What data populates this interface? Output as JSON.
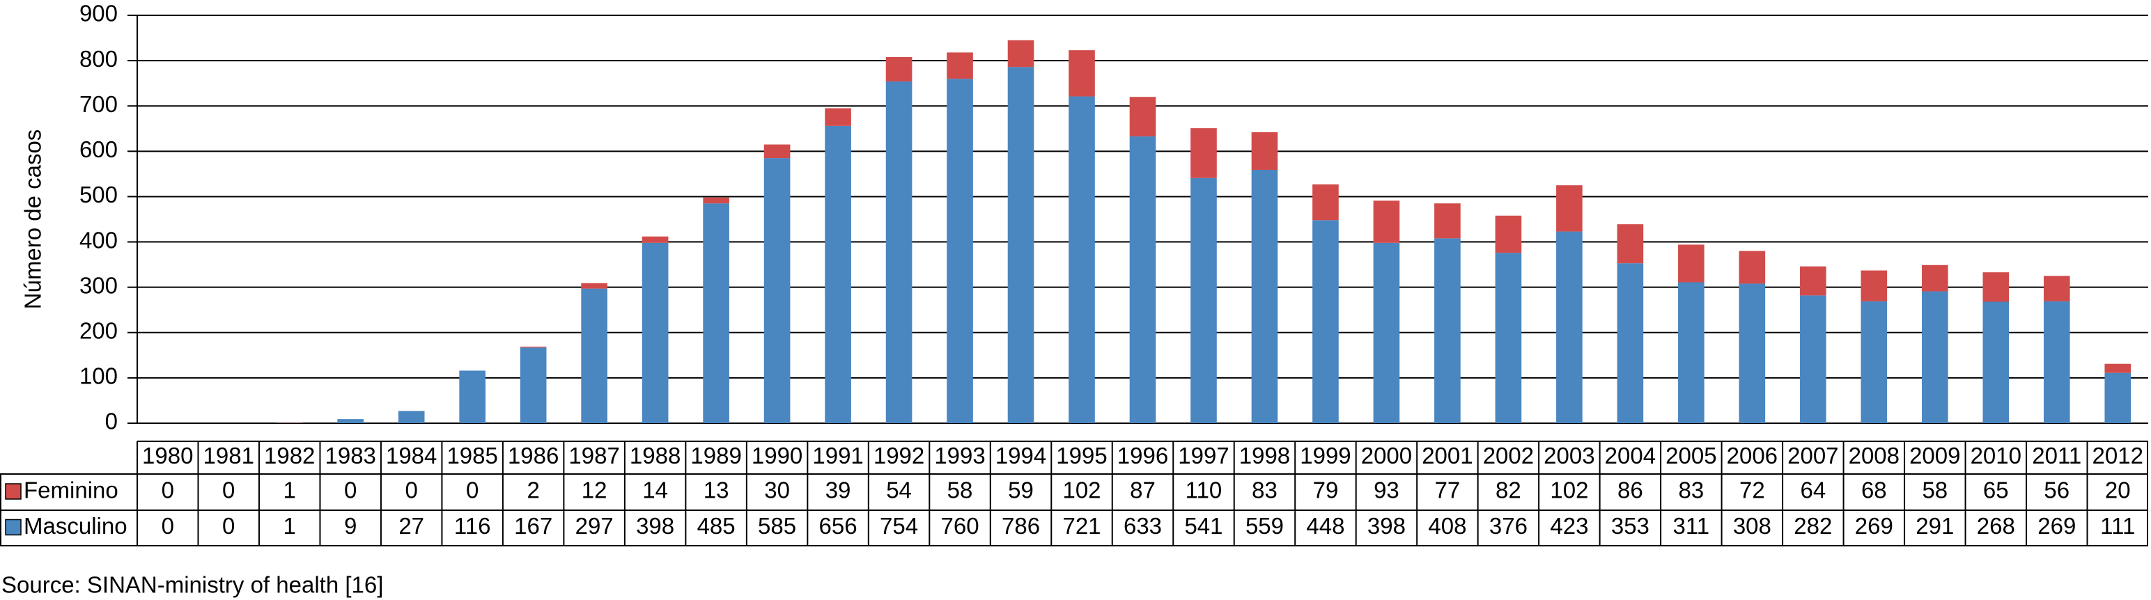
{
  "chart_data": {
    "type": "bar",
    "stacked": true,
    "y_label": "Número de casos",
    "source": "Source: SINAN-ministry of health [16]",
    "categories": [
      "1980",
      "1981",
      "1982",
      "1983",
      "1984",
      "1985",
      "1986",
      "1987",
      "1988",
      "1989",
      "1990",
      "1991",
      "1992",
      "1993",
      "1994",
      "1995",
      "1996",
      "1997",
      "1998",
      "1999",
      "2000",
      "2001",
      "2002",
      "2003",
      "2004",
      "2005",
      "2006",
      "2007",
      "2008",
      "2009",
      "2010",
      "2011",
      "2012"
    ],
    "series": [
      {
        "name": "Feminino",
        "color": "#d24b4b",
        "values": [
          0,
          0,
          1,
          0,
          0,
          0,
          2,
          12,
          14,
          13,
          30,
          39,
          54,
          58,
          59,
          102,
          87,
          110,
          83,
          79,
          93,
          77,
          82,
          102,
          86,
          83,
          72,
          64,
          68,
          58,
          65,
          56,
          20
        ]
      },
      {
        "name": "Masculino",
        "color": "#4a86c0",
        "values": [
          0,
          0,
          1,
          9,
          27,
          116,
          167,
          297,
          398,
          485,
          585,
          656,
          754,
          760,
          786,
          721,
          633,
          541,
          559,
          448,
          398,
          408,
          376,
          423,
          353,
          311,
          308,
          282,
          269,
          291,
          268,
          269,
          111
        ]
      }
    ],
    "ylim": [
      0,
      900
    ],
    "yticks": [
      0,
      100,
      200,
      300,
      400,
      500,
      600,
      700,
      800,
      900
    ],
    "grid": true
  }
}
